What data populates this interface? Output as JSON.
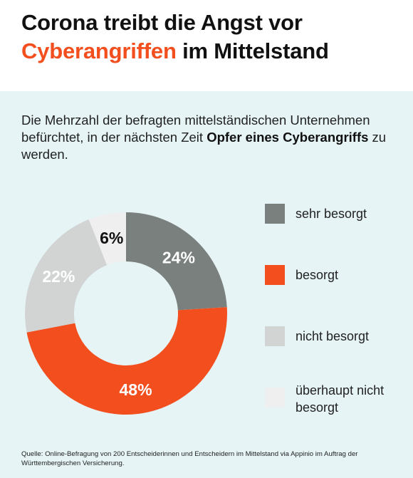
{
  "header": {
    "title_line1": "Corona treibt die Angst vor",
    "title_accent": "Cyberangriffen",
    "title_line2_rest": " im Mittelstand"
  },
  "intro": {
    "part1": "Die Mehrzahl der befragten mittelständischen Unternehmen befürchtet, in der nächsten Zeit ",
    "bold": "Opfer eines Cyberangriffs",
    "part2": " zu werden."
  },
  "source": "Quelle: Online-Befragung von 200 Entscheiderinnen und Entscheidern im Mittelstand via Appinio im Auftrag der Württembergischen Versicherung.",
  "colors": {
    "accent": "#f24e1e",
    "panel_background": "#e6f4f6",
    "sehr_besorgt": "#7a807d",
    "besorgt": "#f24e1e",
    "nicht_besorgt": "#d2d4d4",
    "ueberhaupt_nicht_besorgt": "#efefef"
  },
  "chart_data": {
    "type": "pie",
    "donut": true,
    "unit": "%",
    "categories": [
      "sehr besorgt",
      "besorgt",
      "nicht besorgt",
      "überhaupt nicht besorgt"
    ],
    "values": [
      24,
      48,
      22,
      6
    ],
    "labels": [
      "24%",
      "48%",
      "22%",
      "6%"
    ],
    "colors": [
      "#7a807d",
      "#f24e1e",
      "#d2d4d4",
      "#efefef"
    ],
    "label_colors": [
      "#ffffff",
      "#ffffff",
      "#ffffff",
      "#111111"
    ],
    "legend": {
      "placement": "right",
      "entries": [
        "sehr besorgt",
        "besorgt",
        "nicht besorgt",
        "überhaupt nicht\nbesorgt"
      ]
    }
  }
}
